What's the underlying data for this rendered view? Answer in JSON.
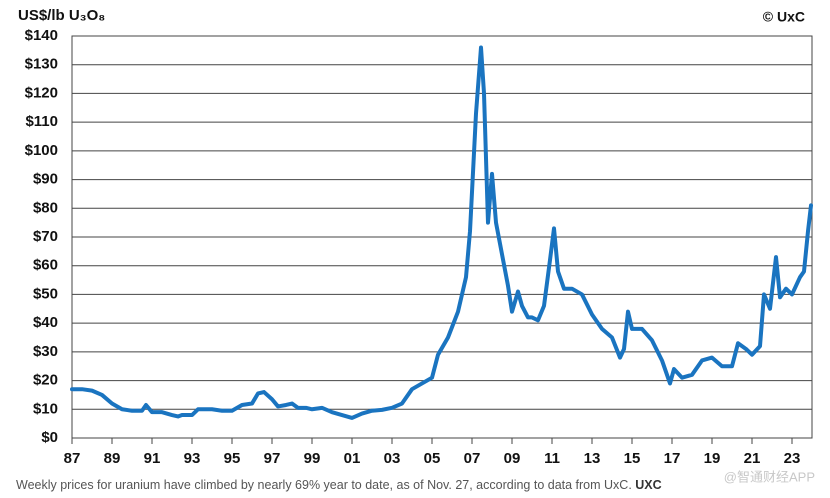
{
  "chart_data": {
    "type": "line",
    "title": "US$/lb U₃O₈",
    "source": "© UxC",
    "caption": "Weekly prices for uranium have climbed by nearly 69% year to date, as of Nov. 27, according to data from UxC.",
    "caption_source": "UXC",
    "watermark": "@智通财经APP",
    "color": "#1a74c0",
    "grid": true,
    "xlim": [
      1987,
      2024
    ],
    "ylim": [
      0,
      140
    ],
    "xticks": [
      {
        "value": 1987,
        "label": "87"
      },
      {
        "value": 1989,
        "label": "89"
      },
      {
        "value": 1991,
        "label": "91"
      },
      {
        "value": 1993,
        "label": "93"
      },
      {
        "value": 1995,
        "label": "95"
      },
      {
        "value": 1997,
        "label": "97"
      },
      {
        "value": 1999,
        "label": "99"
      },
      {
        "value": 2001,
        "label": "01"
      },
      {
        "value": 2003,
        "label": "03"
      },
      {
        "value": 2005,
        "label": "05"
      },
      {
        "value": 2007,
        "label": "07"
      },
      {
        "value": 2009,
        "label": "09"
      },
      {
        "value": 2011,
        "label": "11"
      },
      {
        "value": 2013,
        "label": "13"
      },
      {
        "value": 2015,
        "label": "15"
      },
      {
        "value": 2017,
        "label": "17"
      },
      {
        "value": 2019,
        "label": "19"
      },
      {
        "value": 2021,
        "label": "21"
      },
      {
        "value": 2023,
        "label": "23"
      }
    ],
    "yticks": [
      {
        "value": 0,
        "label": "$0"
      },
      {
        "value": 10,
        "label": "$10"
      },
      {
        "value": 20,
        "label": "$20"
      },
      {
        "value": 30,
        "label": "$30"
      },
      {
        "value": 40,
        "label": "$40"
      },
      {
        "value": 50,
        "label": "$50"
      },
      {
        "value": 60,
        "label": "$60"
      },
      {
        "value": 70,
        "label": "$70"
      },
      {
        "value": 80,
        "label": "$80"
      },
      {
        "value": 90,
        "label": "$90"
      },
      {
        "value": 100,
        "label": "$100"
      },
      {
        "value": 110,
        "label": "$110"
      },
      {
        "value": 120,
        "label": "$120"
      },
      {
        "value": 130,
        "label": "$130"
      },
      {
        "value": 140,
        "label": "$140"
      }
    ],
    "x": [
      1987.0,
      1987.5,
      1988.0,
      1988.5,
      1989.0,
      1989.5,
      1990.0,
      1990.5,
      1990.7,
      1991.0,
      1991.5,
      1992.0,
      1992.3,
      1992.5,
      1993.0,
      1993.3,
      1994.0,
      1994.5,
      1995.0,
      1995.5,
      1996.0,
      1996.3,
      1996.6,
      1997.0,
      1997.3,
      1997.7,
      1998.0,
      1998.3,
      1998.7,
      1999.0,
      1999.5,
      2000.0,
      2000.5,
      2001.0,
      2001.5,
      2002.0,
      2002.5,
      2003.0,
      2003.5,
      2004.0,
      2004.5,
      2005.0,
      2005.3,
      2005.8,
      2006.3,
      2006.7,
      2006.9,
      2007.2,
      2007.45,
      2007.6,
      2007.8,
      2008.0,
      2008.2,
      2008.5,
      2008.8,
      2009.0,
      2009.3,
      2009.5,
      2009.8,
      2010.0,
      2010.3,
      2010.6,
      2010.9,
      2011.1,
      2011.3,
      2011.6,
      2012.0,
      2012.5,
      2013.0,
      2013.5,
      2014.0,
      2014.4,
      2014.6,
      2014.8,
      2015.0,
      2015.5,
      2016.0,
      2016.5,
      2016.9,
      2017.1,
      2017.5,
      2018.0,
      2018.5,
      2019.0,
      2019.5,
      2020.0,
      2020.3,
      2020.7,
      2021.0,
      2021.4,
      2021.6,
      2021.9,
      2022.2,
      2022.4,
      2022.7,
      2023.0,
      2023.4,
      2023.6,
      2023.8,
      2023.95
    ],
    "values": [
      17,
      17,
      16.5,
      15,
      12,
      10,
      9.5,
      9.5,
      11.5,
      9,
      9,
      8,
      7.5,
      8,
      8,
      10,
      10,
      9.5,
      9.5,
      11.5,
      12,
      15.5,
      16,
      13.5,
      11,
      11.5,
      12,
      10.5,
      10.5,
      10,
      10.5,
      9,
      8,
      7,
      8.5,
      9.5,
      9.8,
      10.5,
      12,
      17,
      19,
      21,
      29,
      35,
      44,
      56,
      72,
      113,
      136,
      120,
      75,
      92,
      75,
      64,
      53,
      44,
      51,
      46,
      42,
      42,
      41,
      46,
      62,
      73,
      58,
      52,
      52,
      50,
      43,
      38,
      35,
      28,
      31,
      44,
      38,
      38,
      34,
      27,
      19,
      24,
      21,
      22,
      27,
      28,
      25,
      25,
      33,
      31,
      29,
      32,
      50,
      45,
      63,
      49,
      52,
      50,
      56,
      58,
      72,
      81
    ]
  }
}
